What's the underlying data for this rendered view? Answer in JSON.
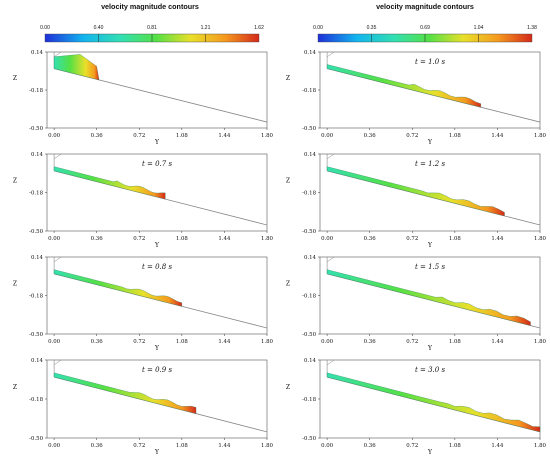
{
  "headers": {
    "left_title": "velocity magnitude contours",
    "right_title": "velocity magnitude contours"
  },
  "colorbars": {
    "left": {
      "ticks": [
        "0.00",
        "0.40",
        "0.81",
        "1.21",
        "1.62"
      ]
    },
    "right": {
      "ticks": [
        "0.00",
        "0.35",
        "0.69",
        "1.04",
        "1.38"
      ]
    }
  },
  "colors": {
    "scale": [
      "#1f2fd8",
      "#12b4f0",
      "#33e0b0",
      "#55e045",
      "#e8e02a",
      "#f59a1f",
      "#d42a1a"
    ],
    "domain": "#888888",
    "frame": "#555555"
  },
  "chart_data": [
    {
      "type": "contour",
      "panel": "left-0",
      "time_label": "",
      "xlabel": "Y",
      "ylabel": "Z",
      "xticks": [
        "0.00",
        "0.36",
        "0.72",
        "1.08",
        "1.44",
        "1.80"
      ],
      "yticks": [
        "0.14",
        "-0.18",
        "-0.50"
      ],
      "xlim": [
        -0.06,
        1.8
      ],
      "ylim": [
        -0.5,
        0.14
      ],
      "front_y": 0.36
    },
    {
      "type": "contour",
      "panel": "left-1",
      "time_label": "t = 0.7 s",
      "xlabel": "Y",
      "ylabel": "Z",
      "xticks": [
        "0.00",
        "0.36",
        "0.72",
        "1.08",
        "1.44",
        "1.80"
      ],
      "yticks": [
        "0.14",
        "-0.18",
        "-0.50"
      ],
      "xlim": [
        -0.06,
        1.8
      ],
      "ylim": [
        -0.5,
        0.14
      ],
      "front_y": 0.94
    },
    {
      "type": "contour",
      "panel": "left-2",
      "time_label": "t = 0.8 s",
      "xlabel": "Y",
      "ylabel": "Z",
      "xticks": [
        "0.00",
        "0.36",
        "0.72",
        "1.08",
        "1.44",
        "1.80"
      ],
      "yticks": [
        "0.14",
        "-0.18",
        "-0.50"
      ],
      "xlim": [
        -0.06,
        1.8
      ],
      "ylim": [
        -0.5,
        0.14
      ],
      "front_y": 1.08
    },
    {
      "type": "contour",
      "panel": "left-3",
      "time_label": "t = 0.9 s",
      "xlabel": "Y",
      "ylabel": "Z",
      "xticks": [
        "0.00",
        "0.36",
        "0.72",
        "1.08",
        "1.44",
        "1.80"
      ],
      "yticks": [
        "0.14",
        "-0.18",
        "-0.50"
      ],
      "xlim": [
        -0.06,
        1.8
      ],
      "ylim": [
        -0.5,
        0.14
      ],
      "front_y": 1.2
    },
    {
      "type": "contour",
      "panel": "right-0",
      "time_label": "t = 1.0 s",
      "xlabel": "Y",
      "ylabel": "Z",
      "xticks": [
        "0.00",
        "0.36",
        "0.72",
        "1.08",
        "1.44",
        "1.80"
      ],
      "yticks": [
        "0.14",
        "-0.18",
        "-0.50"
      ],
      "xlim": [
        -0.06,
        1.8
      ],
      "ylim": [
        -0.5,
        0.14
      ],
      "front_y": 1.3
    },
    {
      "type": "contour",
      "panel": "right-1",
      "time_label": "t = 1.2 s",
      "xlabel": "Y",
      "ylabel": "Z",
      "xticks": [
        "0.00",
        "0.36",
        "0.72",
        "1.08",
        "1.44",
        "1.80"
      ],
      "yticks": [
        "0.14",
        "-0.18",
        "-0.50"
      ],
      "xlim": [
        -0.06,
        1.8
      ],
      "ylim": [
        -0.5,
        0.14
      ],
      "front_y": 1.5
    },
    {
      "type": "contour",
      "panel": "right-2",
      "time_label": "t = 1.5 s",
      "xlabel": "Y",
      "ylabel": "Z",
      "xticks": [
        "0.00",
        "0.36",
        "0.72",
        "1.08",
        "1.44",
        "1.80"
      ],
      "yticks": [
        "0.14",
        "-0.18",
        "-0.50"
      ],
      "xlim": [
        -0.06,
        1.8
      ],
      "ylim": [
        -0.5,
        0.14
      ],
      "front_y": 1.72
    },
    {
      "type": "contour",
      "panel": "right-3",
      "time_label": "t = 3.0 s",
      "xlabel": "Y",
      "ylabel": "Z",
      "xticks": [
        "0.00",
        "0.36",
        "0.72",
        "1.08",
        "1.44",
        "1.80"
      ],
      "yticks": [
        "0.14",
        "-0.18",
        "-0.50"
      ],
      "xlim": [
        -0.06,
        1.8
      ],
      "ylim": [
        -0.5,
        0.14
      ],
      "front_y": 1.8
    }
  ]
}
